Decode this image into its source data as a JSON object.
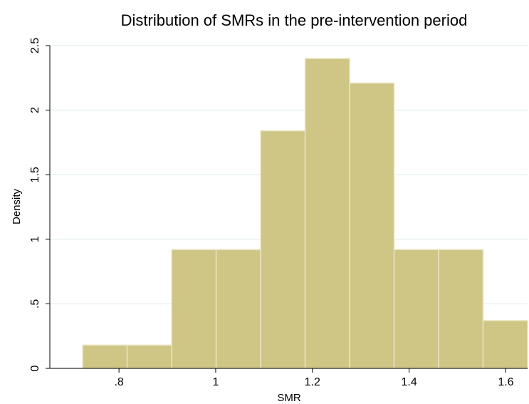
{
  "chart_data": {
    "type": "histogram",
    "title": "Distribution of SMRs in the pre-intervention period",
    "x_label": "SMR",
    "y_label": "Density",
    "bins": [
      0.725,
      0.817,
      0.909,
      1.001,
      1.093,
      1.185,
      1.277,
      1.369,
      1.461,
      1.553,
      1.645
    ],
    "values": [
      0.18,
      0.18,
      0.92,
      0.92,
      1.84,
      2.4,
      2.21,
      0.92,
      0.92,
      0.37
    ],
    "color": "#cfc585",
    "edge_color": "#e9e4c2",
    "xlim": [
      0.657,
      1.645
    ],
    "ylim": [
      0,
      2.5
    ],
    "xticks": [
      {
        "value": 0.8,
        "label": ".8"
      },
      1,
      1.2,
      1.4,
      1.6
    ],
    "yticks": [
      0,
      {
        "value": 0.5,
        "label": ".5"
      },
      1,
      1.5,
      2,
      2.5
    ],
    "grid": true
  }
}
